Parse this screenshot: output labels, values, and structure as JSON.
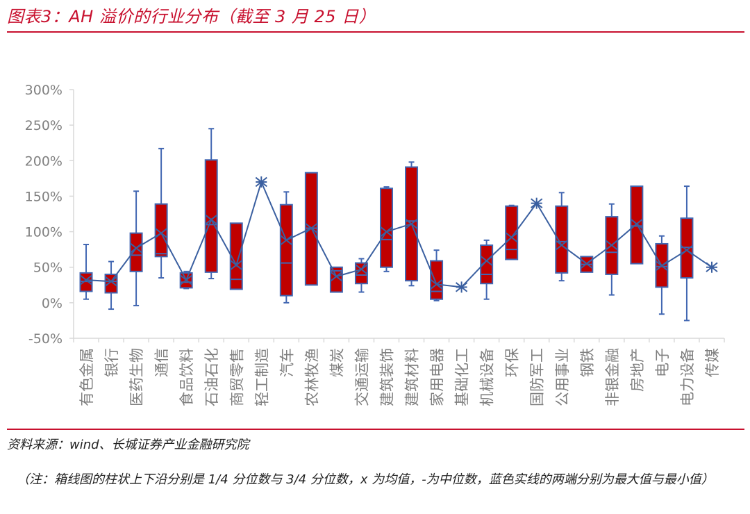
{
  "header": {
    "title": "图表3：AH 溢价的行业分布（截至 3 月 25 日）"
  },
  "footer": {
    "source": "资料来源：wind、长城证券产业金融研究院",
    "note": "（注：箱线图的柱状上下沿分别是 1/4 分位数与 3/4 分位数，x 为均值，-为中位数，蓝色实线的两端分别为最大值与最小值）"
  },
  "colors": {
    "accent": "#c8102e",
    "box_fill": "#c00000",
    "box_stroke": "#4267b2",
    "line": "#3a5fa0",
    "axis": "#d9d9d9",
    "tick_label": "#808080"
  },
  "chart_data": {
    "type": "box",
    "title": "AH 溢价的行业分布（截至 3 月 25 日）",
    "xlabel": "",
    "ylabel": "",
    "ylim": [
      -50,
      300
    ],
    "yticks": [
      "300%",
      "250%",
      "200%",
      "150%",
      "100%",
      "50%",
      "0%",
      "-50%"
    ],
    "ytick_values": [
      300,
      250,
      200,
      150,
      100,
      50,
      0,
      -50
    ],
    "grid": false,
    "legend": null,
    "mean_line": "mean values connected by a blue line with x markers",
    "categories": [
      "有色金属",
      "银行",
      "医药生物",
      "通信",
      "食品饮料",
      "石油石化",
      "商贸零售",
      "轻工制造",
      "汽车",
      "农林牧渔",
      "煤炭",
      "交通运输",
      "建筑装饰",
      "建筑材料",
      "家用电器",
      "基础化工",
      "机械设备",
      "环保",
      "国防军工",
      "公用事业",
      "钢铁",
      "非银金融",
      "房地产",
      "电子",
      "电力设备",
      "传媒"
    ],
    "series": [
      {
        "name": "max",
        "values": [
          82,
          58,
          157,
          217,
          44,
          245,
          112,
          170,
          156,
          183,
          50,
          62,
          163,
          198,
          74,
          22,
          88,
          137,
          140,
          155,
          65,
          139,
          164,
          94,
          164,
          50
        ]
      },
      {
        "name": "q3",
        "values": [
          42,
          40,
          98,
          139,
          42,
          201,
          112,
          170,
          138,
          183,
          50,
          56,
          161,
          191,
          59,
          22,
          81,
          136,
          140,
          136,
          65,
          121,
          164,
          83,
          119,
          50
        ]
      },
      {
        "name": "median",
        "values": [
          30,
          30,
          67,
          69,
          29,
          110,
          33,
          170,
          56,
          105,
          45,
          39,
          89,
          115,
          16,
          22,
          40,
          75,
          140,
          86,
          54,
          71,
          108,
          51,
          78,
          50
        ]
      },
      {
        "name": "q1",
        "values": [
          16,
          14,
          44,
          65,
          21,
          43,
          19,
          170,
          10,
          25,
          15,
          27,
          50,
          31,
          5,
          22,
          27,
          61,
          140,
          42,
          43,
          40,
          55,
          22,
          35,
          50
        ]
      },
      {
        "name": "min",
        "values": [
          5,
          -9,
          -4,
          35,
          20,
          34,
          19,
          170,
          0,
          25,
          15,
          15,
          44,
          24,
          3,
          22,
          5,
          61,
          140,
          31,
          43,
          11,
          55,
          -16,
          -25,
          50
        ]
      },
      {
        "name": "mean",
        "values": [
          32,
          30,
          77,
          98,
          32,
          117,
          53,
          170,
          88,
          105,
          37,
          47,
          100,
          111,
          26,
          22,
          59,
          92,
          140,
          81,
          55,
          81,
          111,
          52,
          74,
          50
        ]
      }
    ],
    "unit": "%"
  }
}
